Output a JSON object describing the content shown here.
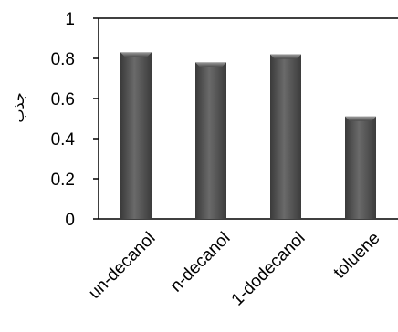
{
  "chart_data": {
    "type": "bar",
    "title": "",
    "xlabel": "",
    "ylabel": "جذب",
    "categories": [
      "un-decanol",
      "n-decanol",
      "1-dodecanol",
      "toluene"
    ],
    "values": [
      0.83,
      0.78,
      0.82,
      0.51
    ],
    "ylim": [
      0,
      1
    ],
    "yticks": [
      0,
      0.2,
      0.4,
      0.6,
      0.8,
      1
    ],
    "ytick_labels": [
      "0",
      "0.2",
      "0.4",
      "0.6",
      "0.8",
      "1"
    ],
    "grid": false,
    "legend": "none",
    "bar_color": "#4a4a4a",
    "bar_highlight_color": "#8a8a8a"
  }
}
